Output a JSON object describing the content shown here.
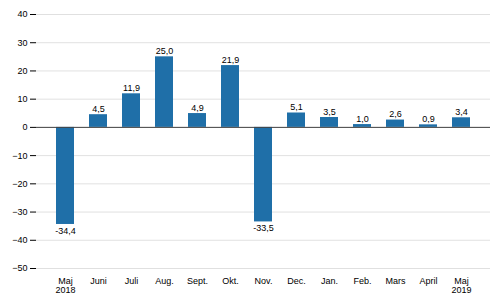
{
  "chart_data": {
    "type": "bar",
    "categories": [
      "Maj\n2018",
      "Juni",
      "Juli",
      "Aug.",
      "Sept.",
      "Okt.",
      "Nov.",
      "Dec.",
      "Jan.",
      "Feb.",
      "Mars",
      "April",
      "Maj\n2019"
    ],
    "values": [
      -34.4,
      4.5,
      11.9,
      25.0,
      4.9,
      21.9,
      -33.5,
      5.1,
      3.5,
      1.0,
      2.6,
      0.9,
      3.4
    ],
    "value_labels": [
      "-34,4",
      "4,5",
      "11,9",
      "25,0",
      "4,9",
      "21,9",
      "-33,5",
      "5,1",
      "3,5",
      "1,0",
      "2,6",
      "0,9",
      "3,4"
    ],
    "color": "#1F6FA8",
    "ylim": [
      -50,
      40
    ],
    "yticks": [
      -50,
      -40,
      -30,
      -20,
      -10,
      0,
      10,
      20,
      30,
      40
    ],
    "grid": true,
    "data_labels": true
  }
}
